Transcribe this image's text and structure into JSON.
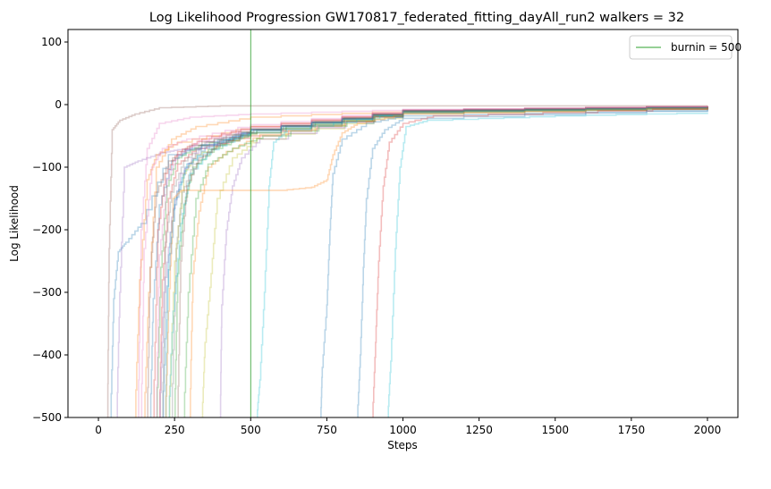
{
  "chart_data": {
    "type": "line",
    "title": "Log Likelihood Progression GW170817_federated_fitting_dayAll_run2 walkers = 32",
    "xlabel": "Steps",
    "ylabel": "Log Likelihood",
    "xlim": [
      -100,
      2100
    ],
    "ylim": [
      -500,
      120
    ],
    "xticks": [
      0,
      250,
      500,
      750,
      1000,
      1250,
      1500,
      1750,
      2000
    ],
    "yticks": [
      -500,
      -400,
      -300,
      -200,
      -100,
      0,
      100
    ],
    "grid": false,
    "legend_position": "top-right",
    "legend": [
      {
        "label": "burnin = 500",
        "color": "#2ca02c"
      }
    ],
    "burnin_line": {
      "x": 500,
      "color": "#2ca02c"
    },
    "series_opacity": 0.3,
    "series": [
      {
        "color": "#8c564b",
        "values": [
          [
            30,
            -500
          ],
          [
            35,
            -230
          ],
          [
            45,
            -40
          ],
          [
            70,
            -25
          ],
          [
            120,
            -15
          ],
          [
            200,
            -5
          ],
          [
            400,
            -2
          ],
          [
            800,
            -2
          ],
          [
            2000,
            -2
          ]
        ]
      },
      {
        "color": "#1f77b4",
        "values": [
          [
            40,
            -500
          ],
          [
            50,
            -310
          ],
          [
            65,
            -235
          ],
          [
            90,
            -220
          ],
          [
            140,
            -190
          ],
          [
            230,
            -80
          ],
          [
            500,
            -40
          ],
          [
            1000,
            -12
          ],
          [
            2000,
            -5
          ]
        ]
      },
      {
        "color": "#9467bd",
        "values": [
          [
            60,
            -500
          ],
          [
            70,
            -300
          ],
          [
            85,
            -100
          ],
          [
            130,
            -90
          ],
          [
            200,
            -78
          ],
          [
            260,
            -72
          ],
          [
            500,
            -40
          ],
          [
            1000,
            -10
          ],
          [
            2000,
            -4
          ]
        ]
      },
      {
        "color": "#e377c2",
        "values": [
          [
            130,
            -500
          ],
          [
            140,
            -200
          ],
          [
            160,
            -70
          ],
          [
            200,
            -30
          ],
          [
            300,
            -20
          ],
          [
            500,
            -15
          ],
          [
            1000,
            -8
          ],
          [
            2000,
            -3
          ]
        ]
      },
      {
        "color": "#ff7f0e",
        "values": [
          [
            150,
            -500
          ],
          [
            165,
            -300
          ],
          [
            190,
            -100
          ],
          [
            240,
            -55
          ],
          [
            320,
            -35
          ],
          [
            500,
            -20
          ],
          [
            1000,
            -10
          ],
          [
            2000,
            -4
          ]
        ]
      },
      {
        "color": "#d62728",
        "values": [
          [
            200,
            -500
          ],
          [
            210,
            -280
          ],
          [
            230,
            -150
          ],
          [
            260,
            -95
          ],
          [
            320,
            -70
          ],
          [
            500,
            -50
          ],
          [
            1000,
            -12
          ],
          [
            2000,
            -3
          ]
        ]
      },
      {
        "color": "#2ca02c",
        "values": [
          [
            190,
            -500
          ],
          [
            205,
            -260
          ],
          [
            225,
            -130
          ],
          [
            260,
            -85
          ],
          [
            330,
            -65
          ],
          [
            500,
            -45
          ],
          [
            1000,
            -10
          ],
          [
            2000,
            -4
          ]
        ]
      },
      {
        "color": "#17becf",
        "values": [
          [
            220,
            -500
          ],
          [
            230,
            -240
          ],
          [
            250,
            -150
          ],
          [
            290,
            -95
          ],
          [
            380,
            -65
          ],
          [
            500,
            -40
          ],
          [
            1000,
            -12
          ],
          [
            2000,
            -6
          ]
        ]
      },
      {
        "color": "#bcbd22",
        "values": [
          [
            230,
            -500
          ],
          [
            250,
            -250
          ],
          [
            280,
            -110
          ],
          [
            320,
            -80
          ],
          [
            420,
            -60
          ],
          [
            520,
            -45
          ],
          [
            1000,
            -12
          ],
          [
            2000,
            -5
          ]
        ]
      },
      {
        "color": "#7f7f7f",
        "values": [
          [
            210,
            -500
          ],
          [
            220,
            -220
          ],
          [
            240,
            -140
          ],
          [
            280,
            -90
          ],
          [
            350,
            -60
          ],
          [
            500,
            -40
          ],
          [
            1000,
            -10
          ],
          [
            2000,
            -3
          ]
        ]
      },
      {
        "color": "#1f77b4",
        "values": [
          [
            170,
            -500
          ],
          [
            180,
            -310
          ],
          [
            200,
            -160
          ],
          [
            240,
            -90
          ],
          [
            300,
            -70
          ],
          [
            500,
            -45
          ],
          [
            1000,
            -14
          ],
          [
            2000,
            -5
          ]
        ]
      },
      {
        "color": "#ff7f0e",
        "values": [
          [
            120,
            -500
          ],
          [
            135,
            -280
          ],
          [
            160,
            -120
          ],
          [
            190,
            -80
          ],
          [
            260,
            -60
          ],
          [
            500,
            -35
          ],
          [
            1000,
            -10
          ],
          [
            2000,
            -4
          ]
        ]
      },
      {
        "color": "#2ca02c",
        "values": [
          [
            250,
            -500
          ],
          [
            260,
            -270
          ],
          [
            280,
            -160
          ],
          [
            310,
            -100
          ],
          [
            380,
            -70
          ],
          [
            520,
            -40
          ],
          [
            1000,
            -9
          ],
          [
            2000,
            -3
          ]
        ]
      },
      {
        "color": "#d62728",
        "values": [
          [
            180,
            -500
          ],
          [
            195,
            -200
          ],
          [
            220,
            -110
          ],
          [
            260,
            -75
          ],
          [
            340,
            -55
          ],
          [
            500,
            -35
          ],
          [
            1000,
            -9
          ],
          [
            2000,
            -2
          ]
        ]
      },
      {
        "color": "#9467bd",
        "values": [
          [
            200,
            -500
          ],
          [
            215,
            -300
          ],
          [
            240,
            -180
          ],
          [
            270,
            -110
          ],
          [
            330,
            -70
          ],
          [
            500,
            -40
          ],
          [
            1000,
            -12
          ],
          [
            2000,
            -4
          ]
        ]
      },
      {
        "color": "#8c564b",
        "values": [
          [
            160,
            -500
          ],
          [
            170,
            -260
          ],
          [
            190,
            -140
          ],
          [
            230,
            -90
          ],
          [
            300,
            -65
          ],
          [
            500,
            -38
          ],
          [
            1000,
            -11
          ],
          [
            2000,
            -3
          ]
        ]
      },
      {
        "color": "#e377c2",
        "values": [
          [
            190,
            -500
          ],
          [
            200,
            -240
          ],
          [
            225,
            -120
          ],
          [
            260,
            -80
          ],
          [
            330,
            -58
          ],
          [
            500,
            -36
          ],
          [
            1000,
            -9
          ],
          [
            2000,
            -3
          ]
        ]
      },
      {
        "color": "#7f7f7f",
        "values": [
          [
            240,
            -500
          ],
          [
            255,
            -230
          ],
          [
            275,
            -140
          ],
          [
            310,
            -95
          ],
          [
            390,
            -65
          ],
          [
            520,
            -42
          ],
          [
            1000,
            -12
          ],
          [
            2000,
            -5
          ]
        ]
      },
      {
        "color": "#bcbd22",
        "values": [
          [
            340,
            -500
          ],
          [
            350,
            -380
          ],
          [
            370,
            -270
          ],
          [
            390,
            -150
          ],
          [
            440,
            -85
          ],
          [
            520,
            -55
          ],
          [
            1000,
            -14
          ],
          [
            2000,
            -6
          ]
        ]
      },
      {
        "color": "#17becf",
        "values": [
          [
            230,
            -500
          ],
          [
            245,
            -330
          ],
          [
            270,
            -190
          ],
          [
            300,
            -110
          ],
          [
            370,
            -72
          ],
          [
            500,
            -42
          ],
          [
            1000,
            -11
          ],
          [
            2000,
            -5
          ]
        ]
      },
      {
        "color": "#ff7f0e",
        "values": [
          [
            300,
            -500
          ],
          [
            310,
            -270
          ],
          [
            330,
            -170
          ],
          [
            360,
            -100
          ],
          [
            420,
            -75
          ],
          [
            530,
            -48
          ],
          [
            1000,
            -12
          ],
          [
            2000,
            -5
          ]
        ]
      },
      {
        "color": "#9467bd",
        "values": [
          [
            400,
            -500
          ],
          [
            405,
            -320
          ],
          [
            420,
            -200
          ],
          [
            440,
            -130
          ],
          [
            470,
            -85
          ],
          [
            530,
            -55
          ],
          [
            1000,
            -10
          ],
          [
            2000,
            -3
          ]
        ]
      },
      {
        "color": "#2ca02c",
        "values": [
          [
            280,
            -500
          ],
          [
            295,
            -300
          ],
          [
            320,
            -150
          ],
          [
            360,
            -95
          ],
          [
            440,
            -70
          ],
          [
            540,
            -50
          ],
          [
            1000,
            -11
          ],
          [
            2000,
            -4
          ]
        ]
      },
      {
        "color": "#1f77b4",
        "values": [
          [
            210,
            -500
          ],
          [
            225,
            -290
          ],
          [
            250,
            -160
          ],
          [
            285,
            -100
          ],
          [
            350,
            -68
          ],
          [
            500,
            -40
          ],
          [
            1000,
            -10
          ],
          [
            2000,
            -4
          ]
        ]
      },
      {
        "color": "#17becf",
        "values": [
          [
            520,
            -500
          ],
          [
            530,
            -440
          ],
          [
            545,
            -300
          ],
          [
            560,
            -130
          ],
          [
            575,
            -60
          ],
          [
            620,
            -40
          ],
          [
            1000,
            -12
          ],
          [
            2000,
            -6
          ]
        ]
      },
      {
        "color": "#ff7f0e",
        "values": [
          [
            220,
            -500
          ],
          [
            230,
            -330
          ],
          [
            245,
            -150
          ],
          [
            270,
            -137
          ],
          [
            600,
            -137
          ],
          [
            700,
            -132
          ],
          [
            750,
            -120
          ],
          [
            770,
            -80
          ],
          [
            800,
            -45
          ],
          [
            850,
            -30
          ],
          [
            1000,
            -15
          ],
          [
            2000,
            -5
          ]
        ]
      },
      {
        "color": "#1f77b4",
        "values": [
          [
            730,
            -500
          ],
          [
            735,
            -420
          ],
          [
            750,
            -320
          ],
          [
            760,
            -200
          ],
          [
            770,
            -110
          ],
          [
            800,
            -55
          ],
          [
            880,
            -30
          ],
          [
            1000,
            -18
          ],
          [
            2000,
            -8
          ]
        ]
      },
      {
        "color": "#1f77b4",
        "values": [
          [
            850,
            -500
          ],
          [
            860,
            -400
          ],
          [
            870,
            -260
          ],
          [
            880,
            -150
          ],
          [
            900,
            -70
          ],
          [
            940,
            -40
          ],
          [
            1000,
            -22
          ],
          [
            2000,
            -8
          ]
        ]
      },
      {
        "color": "#d62728",
        "values": [
          [
            900,
            -500
          ],
          [
            910,
            -380
          ],
          [
            920,
            -250
          ],
          [
            935,
            -130
          ],
          [
            955,
            -60
          ],
          [
            1000,
            -30
          ],
          [
            1100,
            -18
          ],
          [
            2000,
            -5
          ]
        ]
      },
      {
        "color": "#17becf",
        "values": [
          [
            950,
            -500
          ],
          [
            960,
            -410
          ],
          [
            975,
            -230
          ],
          [
            990,
            -100
          ],
          [
            1010,
            -35
          ],
          [
            1080,
            -25
          ],
          [
            1500,
            -18
          ],
          [
            2000,
            -13
          ]
        ]
      },
      {
        "color": "#8c564b",
        "values": [
          [
            260,
            -500
          ],
          [
            270,
            -250
          ],
          [
            290,
            -130
          ],
          [
            330,
            -85
          ],
          [
            400,
            -62
          ],
          [
            510,
            -40
          ],
          [
            1000,
            -10
          ],
          [
            2000,
            -2
          ]
        ]
      },
      {
        "color": "#e377c2",
        "values": [
          [
            140,
            -500
          ],
          [
            150,
            -230
          ],
          [
            175,
            -100
          ],
          [
            210,
            -70
          ],
          [
            290,
            -55
          ],
          [
            500,
            -32
          ],
          [
            1000,
            -8
          ],
          [
            2000,
            -2
          ]
        ]
      }
    ]
  }
}
